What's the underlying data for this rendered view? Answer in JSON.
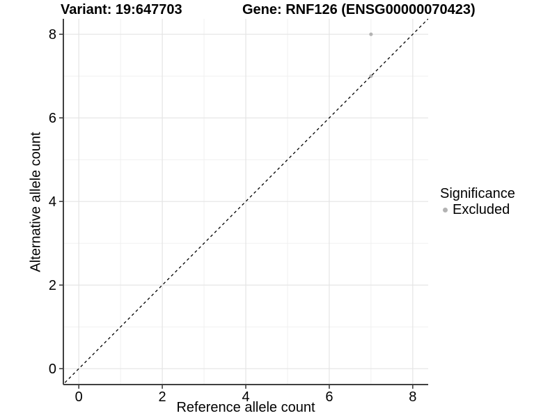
{
  "chart_data": {
    "type": "scatter",
    "titles": {
      "variant": "Variant: 19:647703",
      "gene": "Gene: RNF126 (ENSG00000070423)"
    },
    "xlabel": "Reference allele count",
    "ylabel": "Alternative allele count",
    "xlim": [
      -0.37,
      8.37
    ],
    "ylim": [
      -0.38,
      8.37
    ],
    "x_ticks": [
      0,
      2,
      4,
      6,
      8
    ],
    "y_ticks": [
      0,
      2,
      4,
      6,
      8
    ],
    "x_minor_gridlines": [
      1,
      3,
      5,
      7
    ],
    "y_minor_gridlines": [
      1,
      3,
      5,
      7
    ],
    "grid": true,
    "identity_line": {
      "equation": "y = x",
      "style": "dashed",
      "color": "#000000"
    },
    "series": [
      {
        "name": "Excluded",
        "color": "#b3b3b3",
        "points": [
          {
            "x": 7,
            "y": 8
          },
          {
            "x": 7,
            "y": 7
          }
        ]
      }
    ],
    "legend": {
      "title": "Significance",
      "position": "right",
      "items": [
        {
          "label": "Excluded",
          "marker": "circle-icon",
          "color": "#b3b3b3"
        }
      ]
    }
  },
  "colors": {
    "background": "#ffffff",
    "grid_major": "#e4e4e4",
    "grid_minor": "#f0f0f0",
    "axis": "#404040",
    "text": "#000000"
  }
}
